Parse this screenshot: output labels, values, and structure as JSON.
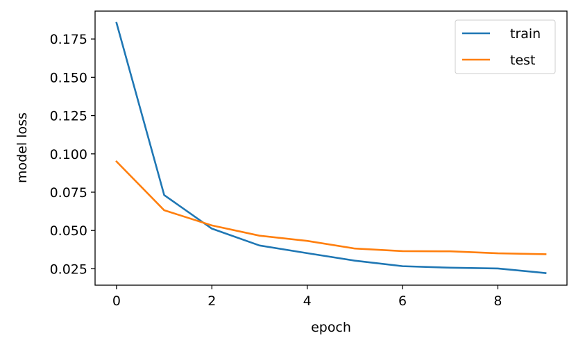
{
  "chart_data": {
    "type": "line",
    "xlabel": "epoch",
    "ylabel": "model loss",
    "x": [
      0,
      1,
      2,
      3,
      4,
      5,
      6,
      7,
      8,
      9
    ],
    "xlim": [
      -0.45,
      9.45
    ],
    "ylim": [
      0.0143,
      0.1932
    ],
    "xticks": [
      0,
      2,
      4,
      6,
      8
    ],
    "xtick_labels": [
      "0",
      "2",
      "4",
      "6",
      "8"
    ],
    "yticks": [
      0.025,
      0.05,
      0.075,
      0.1,
      0.125,
      0.15,
      0.175
    ],
    "ytick_labels": [
      "0.025",
      "0.050",
      "0.075",
      "0.100",
      "0.125",
      "0.150",
      "0.175"
    ],
    "grid": false,
    "legend_position": "top-right",
    "series": [
      {
        "name": "train",
        "color": "#1f77b4",
        "values": [
          0.1855,
          0.0731,
          0.0512,
          0.0402,
          0.0352,
          0.0303,
          0.0267,
          0.0257,
          0.0252,
          0.0222
        ]
      },
      {
        "name": "test",
        "color": "#ff7f0e",
        "values": [
          0.095,
          0.0632,
          0.0533,
          0.0466,
          0.0432,
          0.0382,
          0.0365,
          0.0364,
          0.0351,
          0.0345
        ]
      }
    ]
  }
}
